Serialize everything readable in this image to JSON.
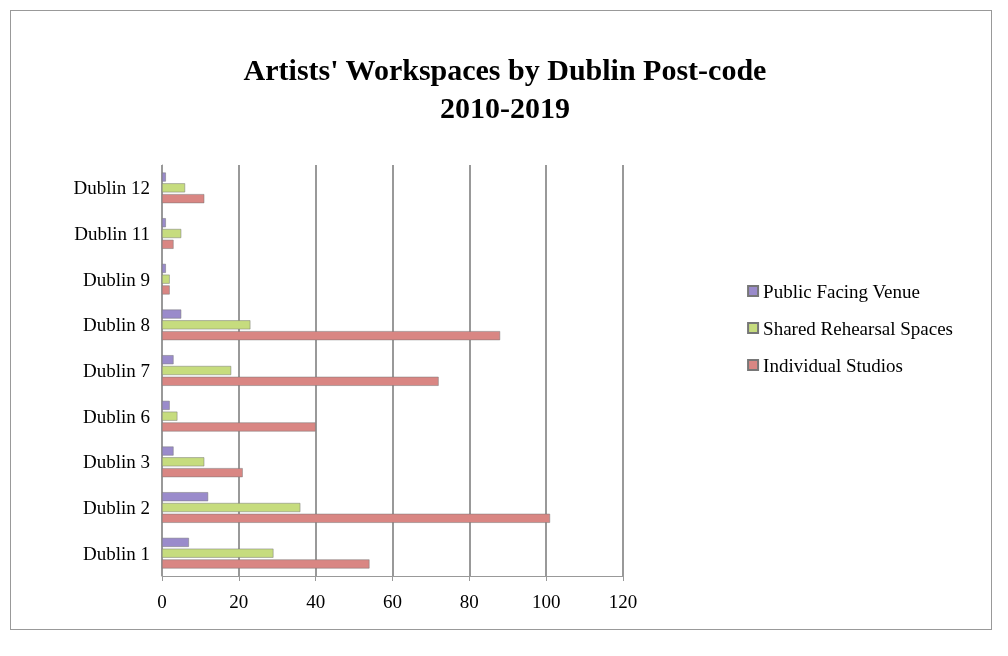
{
  "chart_data": {
    "type": "bar",
    "orientation": "horizontal",
    "title": "Artists' Workspaces by Dublin Post-code\n2010-2019",
    "categories": [
      "Dublin 12",
      "Dublin 11",
      "Dublin 9",
      "Dublin 8",
      "Dublin 7",
      "Dublin 6",
      "Dublin 3",
      "Dublin 2",
      "Dublin 1"
    ],
    "series": [
      {
        "name": "Public Facing Venue",
        "color": "#9a8bcb",
        "values": [
          1,
          1,
          1,
          5,
          3,
          2,
          3,
          12,
          7
        ]
      },
      {
        "name": "Shared Rehearsal Spaces",
        "color": "#c6dc7e",
        "values": [
          6,
          5,
          2,
          23,
          18,
          4,
          11,
          36,
          29
        ]
      },
      {
        "name": "Individual Studios",
        "color": "#d98683",
        "values": [
          11,
          3,
          2,
          88,
          72,
          40,
          21,
          101,
          54
        ]
      }
    ],
    "xlim": [
      0,
      120
    ],
    "xticks": [
      0,
      20,
      40,
      60,
      80,
      100,
      120
    ],
    "grid": "x",
    "legend": "right"
  }
}
